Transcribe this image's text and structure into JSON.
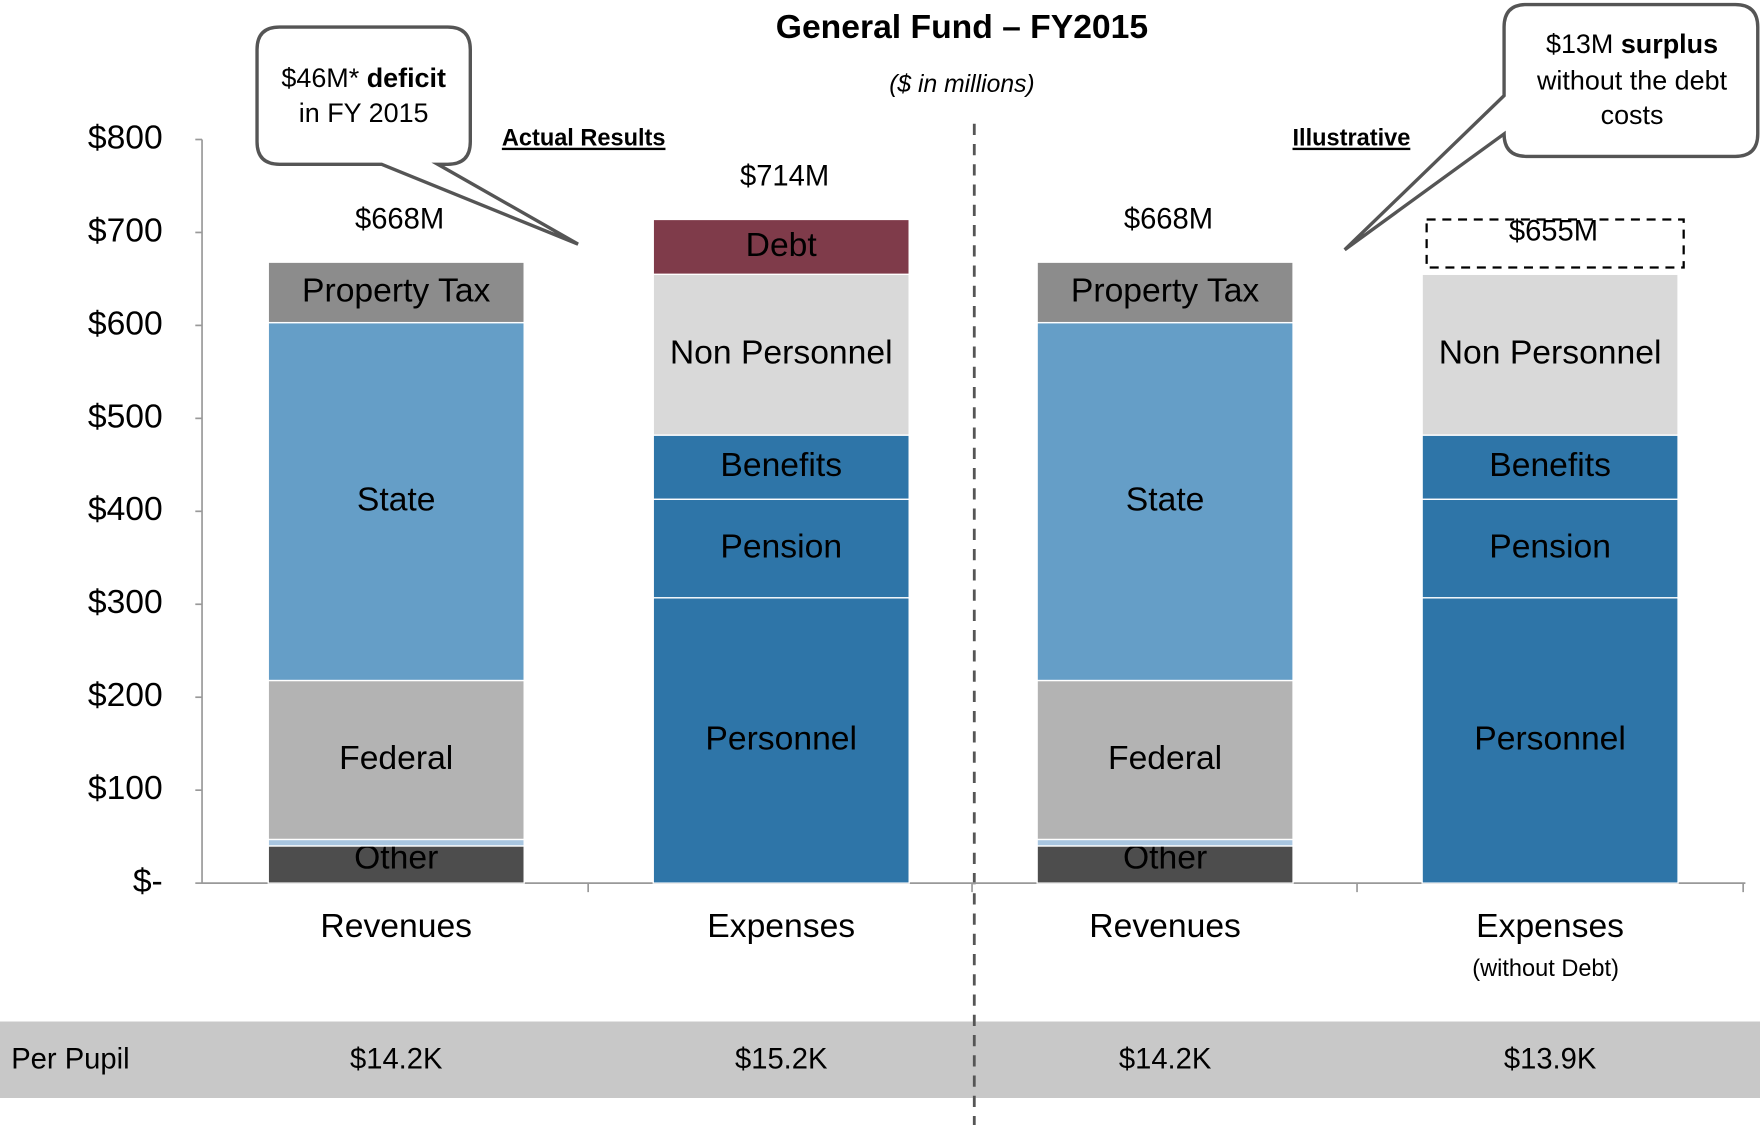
{
  "chart_data": {
    "type": "stacked_bar",
    "title": "General Fund – FY2015",
    "subtitle": "($ in millions)",
    "group_labels": [
      "Actual Results",
      "Illustrative"
    ],
    "categories": [
      "Revenues",
      "Expenses",
      "Revenues",
      "Expenses"
    ],
    "category_notes": [
      null,
      null,
      null,
      "(without Debt)"
    ],
    "totals": [
      668,
      714,
      668,
      655
    ],
    "total_labels": [
      "$668M",
      "$714M",
      "$668M",
      "$655M"
    ],
    "ylim": [
      0,
      800
    ],
    "yticks": [
      {
        "value": 0,
        "label": "$-"
      },
      {
        "value": 100,
        "label": "$100"
      },
      {
        "value": 200,
        "label": "$200"
      },
      {
        "value": 300,
        "label": "$300"
      },
      {
        "value": 400,
        "label": "$400"
      },
      {
        "value": 500,
        "label": "$500"
      },
      {
        "value": 600,
        "label": "$600"
      },
      {
        "value": 700,
        "label": "$700"
      },
      {
        "value": 800,
        "label": "$800"
      }
    ],
    "bars": [
      {
        "segments": [
          {
            "name": "Other",
            "value": 40,
            "color": "#4d4d4d",
            "label_color": "#ffffff"
          },
          {
            "name": null,
            "value": 7,
            "color": "#a9c6e0"
          },
          {
            "name": "Federal",
            "value": 171,
            "color": "#b3b3b3",
            "label_color": "#000000"
          },
          {
            "name": "State",
            "value": 385,
            "color": "#659ec7",
            "label_color": "#000000"
          },
          {
            "name": "Property Tax",
            "value": 65,
            "color": "#8c8c8c",
            "label_color": "#ffffff"
          }
        ]
      },
      {
        "segments": [
          {
            "name": "Personnel",
            "value": 307,
            "color": "#2e75a8",
            "label_color": "#ffffff"
          },
          {
            "name": "Pension",
            "value": 106,
            "color": "#2e75a8",
            "label_color": "#ffffff"
          },
          {
            "name": "Benefits",
            "value": 69,
            "color": "#2e75a8",
            "label_color": "#ffffff"
          },
          {
            "name": "Non Personnel",
            "value": 173,
            "color": "#d9d9d9",
            "label_color": "#000000"
          },
          {
            "name": "Debt",
            "value": 59,
            "color": "#7f3b4a",
            "label_color": "#ffffff"
          }
        ]
      },
      {
        "segments": [
          {
            "name": "Other",
            "value": 40,
            "color": "#4d4d4d",
            "label_color": "#ffffff"
          },
          {
            "name": null,
            "value": 7,
            "color": "#a9c6e0"
          },
          {
            "name": "Federal",
            "value": 171,
            "color": "#b3b3b3",
            "label_color": "#000000"
          },
          {
            "name": "State",
            "value": 385,
            "color": "#659ec7",
            "label_color": "#000000"
          },
          {
            "name": "Property Tax",
            "value": 65,
            "color": "#8c8c8c",
            "label_color": "#ffffff"
          }
        ]
      },
      {
        "segments": [
          {
            "name": "Personnel",
            "value": 307,
            "color": "#2e75a8",
            "label_color": "#ffffff"
          },
          {
            "name": "Pension",
            "value": 106,
            "color": "#2e75a8",
            "label_color": "#ffffff"
          },
          {
            "name": "Benefits",
            "value": 69,
            "color": "#2e75a8",
            "label_color": "#ffffff"
          },
          {
            "name": "Non Personnel",
            "value": 173,
            "color": "#d9d9d9",
            "label_color": "#000000"
          }
        ],
        "removed_segment": {
          "value": 59,
          "style": "dashed"
        }
      }
    ],
    "callouts": [
      {
        "prefix": "$46M*",
        "bold": "deficit",
        "rest": [
          "in FY 2015"
        ]
      },
      {
        "prefix": "$13M",
        "bold": "surplus",
        "rest": [
          "without the debt",
          "costs"
        ]
      }
    ],
    "per_pupil": {
      "label": "Per Pupil",
      "values": [
        "$14.2K",
        "$15.2K",
        "$14.2K",
        "$13.9K"
      ]
    }
  }
}
